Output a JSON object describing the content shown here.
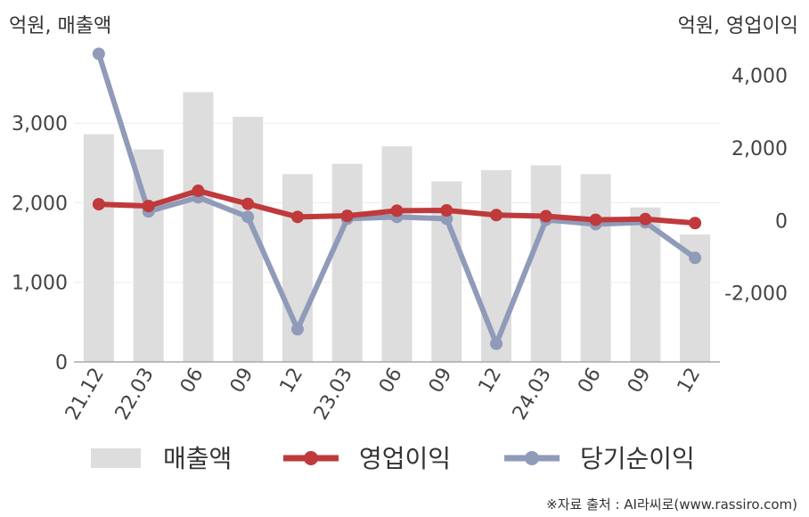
{
  "chart_data": {
    "type": "bar",
    "categories": [
      "21.12",
      "22.03",
      "06",
      "09",
      "12",
      "23.03",
      "06",
      "09",
      "12",
      "24.03",
      "06",
      "09",
      "12"
    ],
    "series": [
      {
        "name": "매출액",
        "type": "bar",
        "axis": "left",
        "color": "#dddddd",
        "values": [
          2860,
          2670,
          3390,
          3080,
          2360,
          2490,
          2710,
          2270,
          2410,
          2470,
          2360,
          1940,
          1600
        ]
      },
      {
        "name": "영업이익",
        "type": "line",
        "axis": "right",
        "color": "#c0393b",
        "values": [
          450,
          400,
          820,
          460,
          100,
          130,
          270,
          280,
          150,
          120,
          20,
          40,
          -70
        ]
      },
      {
        "name": "당기순이익",
        "type": "line",
        "axis": "right",
        "color": "#8f9bb8",
        "values": [
          4600,
          250,
          640,
          100,
          -3000,
          50,
          100,
          50,
          -3400,
          20,
          -100,
          -50,
          -1030
        ]
      }
    ],
    "left_axis": {
      "unit_label": "억원, 매출액",
      "ylim": [
        0,
        4100
      ],
      "ticks": [
        0,
        1000,
        2000,
        3000
      ],
      "tick_labels": [
        "0",
        "1,000",
        "2,000",
        "3,000"
      ]
    },
    "right_axis": {
      "unit_label": "억원, 영업이익",
      "ylim": [
        -3900,
        5100
      ],
      "ticks": [
        -2000,
        0,
        2000,
        4000
      ],
      "tick_labels": [
        "-2,000",
        "0",
        "2,000",
        "4,000"
      ]
    },
    "grid": true,
    "legend_position": "bottom"
  },
  "source_text": "※자료 출처 : AI라씨로(www.rassiro.com)"
}
